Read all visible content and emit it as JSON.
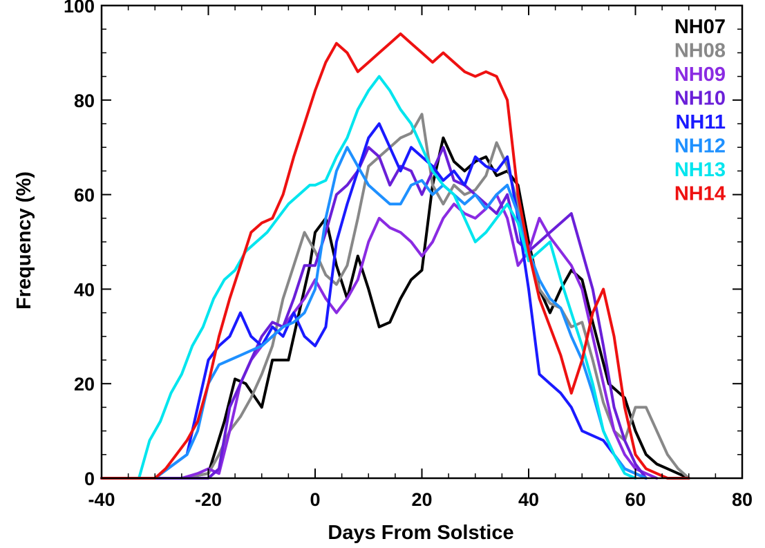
{
  "chart_data": {
    "type": "line",
    "xlabel": "Days From Solstice",
    "ylabel": "Frequency (%)",
    "xlim": [
      -40,
      80
    ],
    "ylim": [
      0,
      100
    ],
    "xticks": [
      -40,
      -20,
      0,
      20,
      40,
      60,
      80
    ],
    "yticks": [
      0,
      20,
      40,
      60,
      80,
      100
    ],
    "grid": false,
    "legend": "top-right",
    "series": [
      {
        "name": "NH07",
        "color": "#000000",
        "x": [
          -40,
          -30,
          -25,
          -20,
          -17,
          -15,
          -13,
          -10,
          -8,
          -5,
          -3,
          -1,
          0,
          2,
          4,
          6,
          8,
          10,
          12,
          14,
          16,
          18,
          20,
          22,
          24,
          26,
          28,
          30,
          32,
          34,
          36,
          38,
          40,
          42,
          44,
          46,
          48,
          50,
          52,
          55,
          58,
          60,
          62,
          64,
          66,
          68,
          70
        ],
        "y": [
          0,
          0,
          0,
          1,
          12,
          21,
          20,
          15,
          25,
          25,
          35,
          45,
          52,
          55,
          45,
          38,
          47,
          40,
          32,
          33,
          38,
          42,
          44,
          62,
          72,
          67,
          65,
          67,
          68,
          64,
          65,
          62,
          50,
          40,
          35,
          40,
          44,
          42,
          33,
          20,
          17,
          10,
          5,
          3,
          2,
          1,
          0
        ]
      },
      {
        "name": "NH08",
        "color": "#888888",
        "x": [
          -40,
          -25,
          -20,
          -18,
          -16,
          -14,
          -12,
          -10,
          -8,
          -6,
          -4,
          -2,
          0,
          2,
          4,
          6,
          8,
          10,
          12,
          14,
          16,
          18,
          20,
          22,
          24,
          26,
          28,
          30,
          32,
          34,
          36,
          38,
          40,
          42,
          44,
          46,
          48,
          50,
          52,
          54,
          56,
          58,
          60,
          62,
          64,
          66,
          68,
          70
        ],
        "y": [
          0,
          0,
          1,
          5,
          10,
          13,
          17,
          22,
          28,
          38,
          45,
          52,
          48,
          43,
          41,
          45,
          55,
          66,
          68,
          70,
          72,
          73,
          77,
          62,
          58,
          62,
          60,
          61,
          64,
          71,
          66,
          58,
          48,
          40,
          37,
          36,
          32,
          33,
          25,
          16,
          10,
          8,
          15,
          15,
          10,
          5,
          2,
          0
        ]
      },
      {
        "name": "NH09",
        "color": "#8a2be2",
        "x": [
          -40,
          -25,
          -22,
          -20,
          -18,
          -16,
          -14,
          -12,
          -10,
          -8,
          -6,
          -4,
          -2,
          0,
          2,
          4,
          6,
          8,
          10,
          12,
          14,
          16,
          18,
          20,
          22,
          24,
          26,
          28,
          30,
          32,
          34,
          36,
          38,
          40,
          42,
          44,
          46,
          48,
          50,
          52,
          54,
          56,
          58,
          60,
          62,
          64
        ],
        "y": [
          0,
          0,
          1,
          2,
          1,
          10,
          20,
          25,
          28,
          30,
          32,
          35,
          38,
          42,
          38,
          35,
          38,
          42,
          50,
          55,
          53,
          52,
          50,
          47,
          50,
          55,
          58,
          56,
          55,
          57,
          60,
          55,
          45,
          48,
          55,
          51,
          48,
          45,
          40,
          30,
          20,
          10,
          5,
          2,
          1,
          0
        ]
      },
      {
        "name": "NH10",
        "color": "#6a1fd8",
        "x": [
          -40,
          -20,
          -18,
          -16,
          -14,
          -12,
          -10,
          -8,
          -6,
          -4,
          -2,
          0,
          2,
          4,
          6,
          8,
          10,
          12,
          14,
          16,
          18,
          20,
          22,
          24,
          26,
          28,
          30,
          32,
          34,
          36,
          38,
          40,
          42,
          44,
          46,
          48,
          50,
          52,
          54,
          56,
          58,
          60,
          62
        ],
        "y": [
          0,
          0,
          2,
          15,
          20,
          25,
          30,
          33,
          32,
          38,
          45,
          45,
          52,
          60,
          62,
          65,
          70,
          68,
          62,
          66,
          65,
          60,
          65,
          70,
          63,
          62,
          60,
          58,
          56,
          60,
          50,
          48,
          50,
          52,
          54,
          56,
          48,
          40,
          28,
          15,
          8,
          3,
          0
        ]
      },
      {
        "name": "NH11",
        "color": "#1a1aff",
        "x": [
          -40,
          -30,
          -24,
          -22,
          -20,
          -18,
          -16,
          -14,
          -12,
          -10,
          -8,
          -6,
          -4,
          -2,
          0,
          2,
          4,
          6,
          8,
          10,
          12,
          14,
          16,
          18,
          20,
          22,
          24,
          26,
          28,
          30,
          32,
          34,
          36,
          38,
          40,
          42,
          44,
          46,
          48,
          50,
          52,
          54,
          56,
          58,
          60,
          62
        ],
        "y": [
          0,
          0,
          5,
          15,
          25,
          28,
          30,
          35,
          30,
          28,
          32,
          30,
          35,
          30,
          28,
          32,
          50,
          58,
          65,
          72,
          75,
          70,
          65,
          70,
          68,
          66,
          63,
          65,
          62,
          68,
          66,
          65,
          68,
          55,
          40,
          22,
          20,
          18,
          15,
          10,
          9,
          8,
          5,
          2,
          1,
          0
        ]
      },
      {
        "name": "NH12",
        "color": "#1e90ff",
        "x": [
          -40,
          -30,
          -24,
          -22,
          -20,
          -18,
          -16,
          -14,
          -12,
          -10,
          -8,
          -6,
          -4,
          -2,
          0,
          2,
          4,
          6,
          8,
          10,
          12,
          14,
          16,
          18,
          20,
          22,
          24,
          26,
          28,
          30,
          32,
          34,
          36,
          38,
          40,
          42,
          44,
          46,
          48,
          50,
          52,
          54,
          56,
          58,
          60,
          62
        ],
        "y": [
          0,
          0,
          5,
          10,
          20,
          24,
          25,
          26,
          27,
          28,
          30,
          32,
          33,
          35,
          40,
          55,
          65,
          70,
          66,
          62,
          60,
          58,
          58,
          62,
          63,
          60,
          62,
          60,
          58,
          60,
          57,
          60,
          62,
          56,
          48,
          42,
          38,
          36,
          30,
          25,
          18,
          10,
          5,
          2,
          1,
          0
        ]
      },
      {
        "name": "NH13",
        "color": "#00e5ee",
        "x": [
          -40,
          -33,
          -31,
          -29,
          -27,
          -25,
          -23,
          -21,
          -19,
          -17,
          -15,
          -13,
          -11,
          -9,
          -7,
          -5,
          -3,
          -1,
          0,
          2,
          4,
          6,
          8,
          10,
          12,
          14,
          16,
          18,
          20,
          22,
          24,
          26,
          28,
          30,
          32,
          34,
          36,
          38,
          40,
          42,
          44,
          46,
          48,
          50,
          52,
          54,
          56,
          58,
          60
        ],
        "y": [
          0,
          0,
          8,
          12,
          18,
          22,
          28,
          32,
          38,
          42,
          44,
          48,
          50,
          52,
          55,
          58,
          60,
          62,
          62,
          63,
          68,
          72,
          78,
          82,
          85,
          82,
          78,
          75,
          70,
          65,
          62,
          60,
          55,
          50,
          52,
          55,
          58,
          54,
          46,
          48,
          50,
          42,
          35,
          28,
          20,
          10,
          5,
          1,
          0
        ]
      },
      {
        "name": "NH14",
        "color": "#ee1111",
        "x": [
          -40,
          -30,
          -28,
          -26,
          -24,
          -22,
          -20,
          -18,
          -16,
          -14,
          -12,
          -10,
          -8,
          -6,
          -4,
          -2,
          0,
          2,
          4,
          6,
          8,
          10,
          12,
          14,
          16,
          18,
          20,
          22,
          24,
          26,
          28,
          30,
          32,
          34,
          36,
          38,
          40,
          42,
          44,
          46,
          48,
          50,
          52,
          54,
          56,
          58,
          60,
          62,
          64,
          66,
          68,
          70
        ],
        "y": [
          0,
          0,
          2,
          5,
          8,
          12,
          20,
          30,
          38,
          45,
          52,
          54,
          55,
          60,
          68,
          75,
          82,
          88,
          92,
          90,
          86,
          88,
          90,
          92,
          94,
          92,
          90,
          88,
          90,
          88,
          86,
          85,
          86,
          85,
          80,
          60,
          48,
          38,
          32,
          26,
          18,
          25,
          35,
          40,
          30,
          15,
          5,
          2,
          1,
          0,
          0,
          0
        ]
      }
    ]
  }
}
